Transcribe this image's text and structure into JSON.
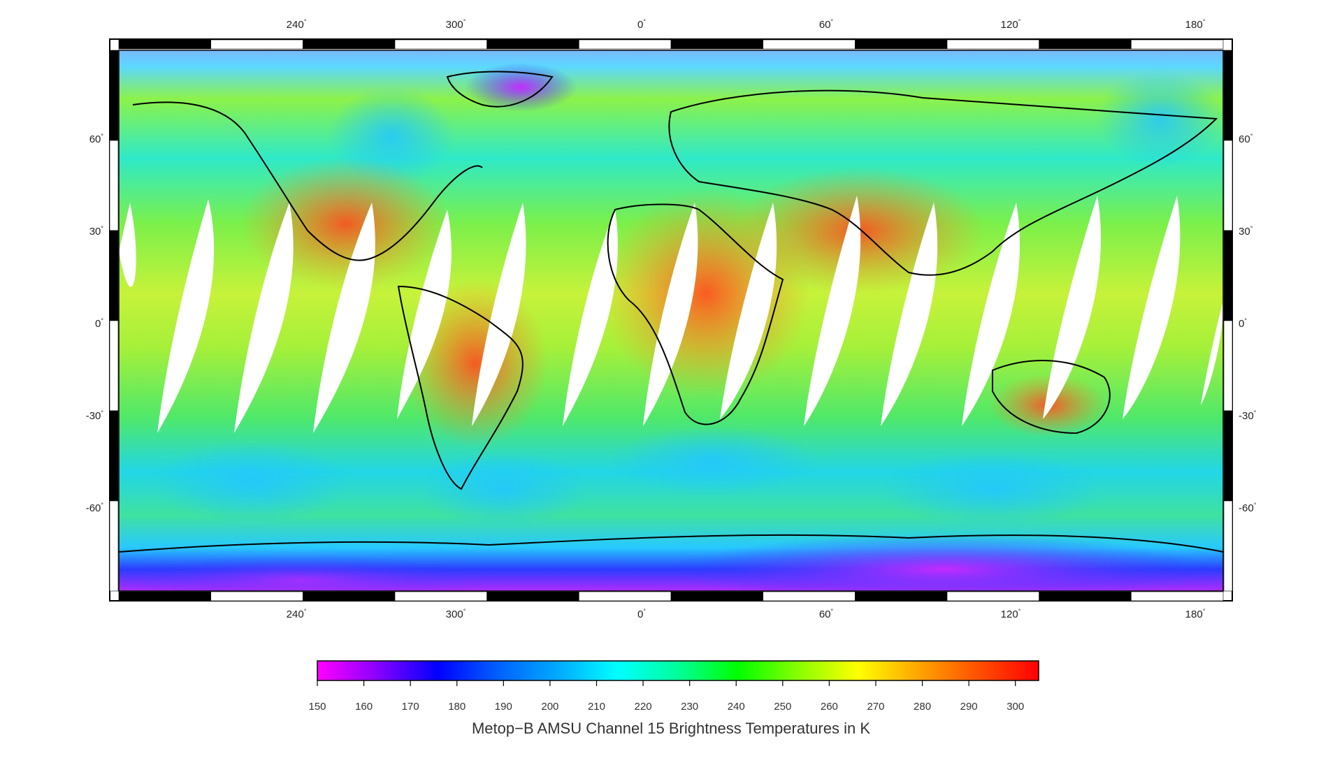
{
  "map": {
    "projection": "equirectangular",
    "lon_ticks_top": [
      "240",
      "300",
      "0",
      "60",
      "120",
      "180"
    ],
    "lon_ticks_bottom": [
      "240",
      "300",
      "0",
      "60",
      "120",
      "180"
    ],
    "lat_ticks_left": [
      "60",
      "30",
      "0",
      "-30",
      "-60"
    ],
    "lat_ticks_right": [
      "60",
      "30",
      "0",
      "-30",
      "-60"
    ],
    "degree_symbol": "°"
  },
  "colorbar": {
    "title": "Metop−B AMSU Channel 15 Brightness Temperatures in K",
    "ticks": [
      "150",
      "160",
      "170",
      "180",
      "190",
      "200",
      "210",
      "220",
      "230",
      "240",
      "250",
      "260",
      "270",
      "280",
      "290",
      "300"
    ],
    "stops": [
      "#ff00ff",
      "#8800ff",
      "#0000ff",
      "#0060ff",
      "#00aaff",
      "#00ffff",
      "#00ff99",
      "#00ff00",
      "#88ff00",
      "#ffff00",
      "#ffa500",
      "#ff5000",
      "#ff0000"
    ]
  },
  "colors": {
    "land_hot": "#f26a2c",
    "land_warm": "#ffd21e",
    "ocean_mid": "#66e85a",
    "ocean_cool": "#19d8d8",
    "polar": "#2a35ff",
    "frame": "#000000"
  }
}
